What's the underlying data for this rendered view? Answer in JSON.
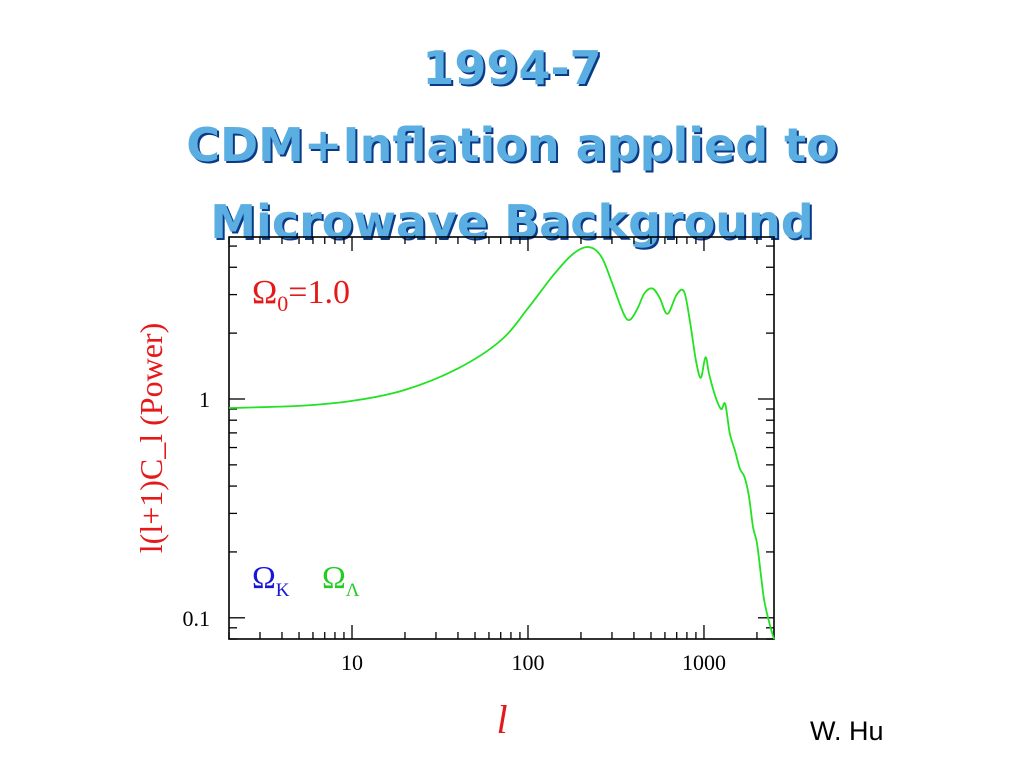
{
  "slide": {
    "title_lines": [
      "1994-7",
      "CDM+Inflation applied to",
      "Microwave Background"
    ],
    "credit": "W. Hu"
  },
  "colors": {
    "title": "#5aaee2",
    "title_shadow": "#0a3a86",
    "curve": "#22e222",
    "label_red": "#e51919",
    "omega_k": "#1616d6",
    "omega_lambda": "#22cc22"
  },
  "chart_data": {
    "type": "line",
    "x_scale": "log",
    "y_scale": "log",
    "xlim": [
      2,
      2500
    ],
    "ylim": [
      0.08,
      5.5
    ],
    "xticks": [
      10,
      100,
      1000
    ],
    "xtick_labels": [
      "10",
      "100",
      "1000"
    ],
    "yticks": [
      0.1,
      1
    ],
    "ytick_labels": [
      "0.1",
      "1"
    ],
    "xlabel": "l",
    "ylabel": "l(l+1)C_l (Power)",
    "grid": false,
    "annotations": {
      "omega0": {
        "symbol": "Ω",
        "sub": "0",
        "value": "=1.0"
      },
      "omega_k": {
        "symbol": "Ω",
        "sub": "K"
      },
      "omega_lambda": {
        "symbol": "Ω",
        "sub": "Λ"
      }
    },
    "series": [
      {
        "x": [
          2,
          5,
          10,
          20,
          40,
          70,
          100,
          140,
          180,
          220,
          260,
          300,
          350,
          380,
          420,
          460,
          510,
          560,
          620,
          700,
          770,
          830,
          900,
          960,
          1020,
          1070,
          1150,
          1250,
          1320,
          1400,
          1500,
          1600,
          1700,
          1800,
          1900,
          2000,
          2100,
          2200,
          2350,
          2500
        ],
        "y": [
          0.91,
          0.93,
          0.98,
          1.1,
          1.38,
          1.85,
          2.6,
          3.7,
          4.6,
          4.95,
          4.5,
          3.4,
          2.45,
          2.3,
          2.6,
          3.05,
          3.2,
          2.9,
          2.45,
          3.0,
          3.1,
          2.3,
          1.5,
          1.25,
          1.55,
          1.3,
          1.05,
          0.9,
          0.95,
          0.7,
          0.58,
          0.48,
          0.44,
          0.36,
          0.26,
          0.22,
          0.16,
          0.12,
          0.095,
          0.08
        ]
      }
    ]
  }
}
